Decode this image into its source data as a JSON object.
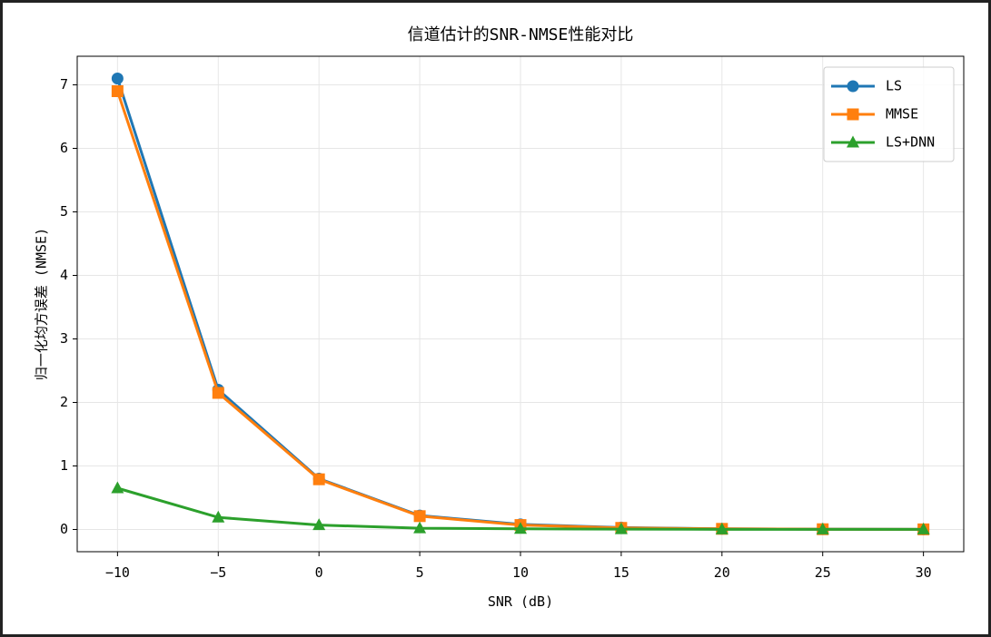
{
  "chart_data": {
    "type": "line",
    "title": "信道估计的SNR-NMSE性能对比",
    "xlabel": "SNR (dB)",
    "ylabel": "归一化均方误差 (NMSE)",
    "x": [
      -10,
      -5,
      0,
      5,
      10,
      15,
      20,
      25,
      30
    ],
    "series": [
      {
        "name": "LS",
        "color": "#1f77b4",
        "marker": "circle",
        "values": [
          7.1,
          2.2,
          0.8,
          0.22,
          0.08,
          0.03,
          0.01,
          0.005,
          0.002
        ]
      },
      {
        "name": "MMSE",
        "color": "#ff7f0e",
        "marker": "square",
        "values": [
          6.9,
          2.15,
          0.79,
          0.21,
          0.07,
          0.025,
          0.01,
          0.004,
          0.002
        ]
      },
      {
        "name": "LS+DNN",
        "color": "#2ca02c",
        "marker": "triangle",
        "values": [
          0.65,
          0.19,
          0.07,
          0.02,
          0.01,
          0.005,
          0.002,
          0.001,
          0.001
        ]
      }
    ],
    "xlim": [
      -12,
      32
    ],
    "xticks": [
      {
        "value": -10,
        "label": "−10"
      },
      {
        "value": -5,
        "label": "−5"
      },
      0,
      5,
      10,
      15,
      20,
      25,
      30
    ],
    "ylim": [
      -0.35,
      7.45
    ],
    "yticks": [
      0,
      1,
      2,
      3,
      4,
      5,
      6,
      7
    ],
    "grid": true,
    "legend": "upper right"
  }
}
